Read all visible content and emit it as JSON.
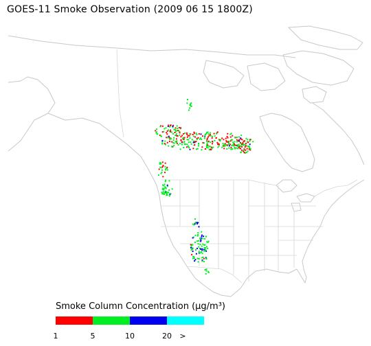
{
  "title": "GOES-11 Smoke Observation (2009 06 15  1800Z)",
  "legend": {
    "title": "Smoke Column Concentration (µg/m³)",
    "ticks": [
      "1",
      "5",
      "10",
      "20",
      ">"
    ],
    "colors": [
      "#ff0000",
      "#00ee22",
      "#0000ee",
      "#00ffff"
    ]
  },
  "colors": {
    "coastline": "#c8c8c8",
    "smoke_low": "#ff0000",
    "smoke_mid": "#00ee22",
    "smoke_high": "#0000ee",
    "smoke_max": "#00ffff"
  }
}
